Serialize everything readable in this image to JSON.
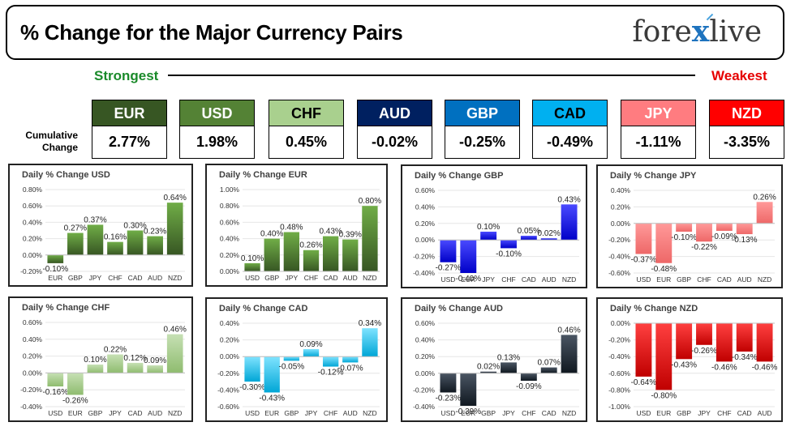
{
  "header": {
    "title": "% Change for the Major Currency Pairs",
    "logo_left": "fore",
    "logo_x": "x",
    "logo_right": "live"
  },
  "ranking": {
    "strongest_label": "Strongest",
    "weakest_label": "Weakest",
    "cumulative_label_1": "Cumulative",
    "cumulative_label_2": "Change"
  },
  "currencies": [
    {
      "code": "EUR",
      "value": "2.77%",
      "bg": "#375623",
      "fg": "#ffffff"
    },
    {
      "code": "USD",
      "value": "1.98%",
      "bg": "#548235",
      "fg": "#ffffff"
    },
    {
      "code": "CHF",
      "value": "0.45%",
      "bg": "#a9d08e",
      "fg": "#000000"
    },
    {
      "code": "AUD",
      "value": "-0.02%",
      "bg": "#002060",
      "fg": "#ffffff"
    },
    {
      "code": "GBP",
      "value": "-0.25%",
      "bg": "#0070c0",
      "fg": "#ffffff"
    },
    {
      "code": "CAD",
      "value": "-0.49%",
      "bg": "#00b0f0",
      "fg": "#000000"
    },
    {
      "code": "JPY",
      "value": "-1.11%",
      "bg": "#ff7c80",
      "fg": "#ffffff"
    },
    {
      "code": "NZD",
      "value": "-3.35%",
      "bg": "#ff0000",
      "fg": "#ffffff"
    }
  ],
  "chart_data": [
    {
      "type": "bar",
      "title": "Daily % Change USD",
      "categories": [
        "EUR",
        "GBP",
        "JPY",
        "CHF",
        "CAD",
        "AUD",
        "NZD"
      ],
      "values": [
        -0.1,
        0.27,
        0.37,
        0.16,
        0.3,
        0.23,
        0.64
      ],
      "labels": [
        "-0.10%",
        "0.27%",
        "0.37%",
        "0.16%",
        "0.30%",
        "0.23%",
        "0.64%"
      ],
      "yticks": [
        "0.80%",
        "0.60%",
        "0.40%",
        "0.20%",
        "0.00%",
        "-0.20%"
      ],
      "ylim": [
        -0.2,
        0.8
      ],
      "color_top": "#70ad47",
      "color_bottom": "#375623"
    },
    {
      "type": "bar",
      "title": "Daily % Change EUR",
      "categories": [
        "USD",
        "GBP",
        "JPY",
        "CHF",
        "CAD",
        "AUD",
        "NZD"
      ],
      "values": [
        0.1,
        0.4,
        0.48,
        0.26,
        0.43,
        0.39,
        0.8
      ],
      "labels": [
        "0.10%",
        "0.40%",
        "0.48%",
        "0.26%",
        "0.43%",
        "0.39%",
        "0.80%"
      ],
      "yticks": [
        "1.00%",
        "0.80%",
        "0.60%",
        "0.40%",
        "0.20%",
        "0.00%"
      ],
      "ylim": [
        0.0,
        1.0
      ],
      "color_top": "#70ad47",
      "color_bottom": "#375623"
    },
    {
      "type": "bar",
      "title": "Daily % Change GBP",
      "categories": [
        "USD",
        "EUR",
        "JPY",
        "CHF",
        "CAD",
        "AUD",
        "NZD"
      ],
      "values": [
        -0.27,
        -0.4,
        0.1,
        -0.1,
        0.05,
        0.02,
        0.43
      ],
      "labels": [
        "-0.27%",
        "-0.40%",
        "0.10%",
        "-0.10%",
        "0.05%",
        "0.02%",
        "0.43%"
      ],
      "yticks": [
        "0.60%",
        "0.40%",
        "0.20%",
        "0.00%",
        "-0.20%",
        "-0.40%"
      ],
      "ylim": [
        -0.4,
        0.6
      ],
      "color_top": "#4a4aff",
      "color_bottom": "#0000c8"
    },
    {
      "type": "bar",
      "title": "Daily % Change JPY",
      "categories": [
        "USD",
        "EUR",
        "GBP",
        "CHF",
        "CAD",
        "AUD",
        "NZD"
      ],
      "values": [
        -0.37,
        -0.48,
        -0.1,
        -0.22,
        -0.09,
        -0.13,
        0.26
      ],
      "labels": [
        "-0.37%",
        "-0.48%",
        "-0.10%",
        "-0.22%",
        "-0.09%",
        "-0.13%",
        "0.26%"
      ],
      "yticks": [
        "0.40%",
        "0.20%",
        "0.00%",
        "-0.20%",
        "-0.40%",
        "-0.60%"
      ],
      "ylim": [
        -0.6,
        0.4
      ],
      "color_top": "#ff9999",
      "color_bottom": "#ee6868"
    },
    {
      "type": "bar",
      "title": "Daily % Change CHF",
      "categories": [
        "USD",
        "EUR",
        "GBP",
        "JPY",
        "CAD",
        "AUD",
        "NZD"
      ],
      "values": [
        -0.16,
        -0.26,
        0.1,
        0.22,
        0.12,
        0.09,
        0.46
      ],
      "labels": [
        "-0.16%",
        "-0.26%",
        "0.10%",
        "0.22%",
        "0.12%",
        "0.09%",
        "0.46%"
      ],
      "yticks": [
        "0.60%",
        "0.40%",
        "0.20%",
        "0.00%",
        "-0.20%",
        "-0.40%"
      ],
      "ylim": [
        -0.4,
        0.6
      ],
      "color_top": "#c6e0b4",
      "color_bottom": "#8fbc6f"
    },
    {
      "type": "bar",
      "title": "Daily % Change CAD",
      "categories": [
        "USD",
        "EUR",
        "GBP",
        "JPY",
        "CHF",
        "AUD",
        "NZD"
      ],
      "values": [
        -0.3,
        -0.43,
        -0.05,
        0.09,
        -0.12,
        -0.07,
        0.34
      ],
      "labels": [
        "-0.30%",
        "-0.43%",
        "-0.05%",
        "0.09%",
        "-0.12%",
        "-0.07%",
        "0.34%"
      ],
      "yticks": [
        "0.40%",
        "0.20%",
        "0.00%",
        "-0.20%",
        "-0.40%",
        "-0.60%"
      ],
      "ylim": [
        -0.6,
        0.4
      ],
      "color_top": "#7fe3ff",
      "color_bottom": "#00a6d6"
    },
    {
      "type": "bar",
      "title": "Daily % Change AUD",
      "categories": [
        "USD",
        "EUR",
        "GBP",
        "JPY",
        "CHF",
        "CAD",
        "NZD"
      ],
      "values": [
        -0.23,
        -0.39,
        0.02,
        0.13,
        -0.09,
        0.07,
        0.46
      ],
      "labels": [
        "-0.23%",
        "-0.39%",
        "0.02%",
        "0.13%",
        "-0.09%",
        "0.07%",
        "0.46%"
      ],
      "yticks": [
        "0.60%",
        "0.40%",
        "0.20%",
        "0.00%",
        "-0.20%",
        "-0.40%"
      ],
      "ylim": [
        -0.4,
        0.6
      ],
      "color_top": "#4a5563",
      "color_bottom": "#101820"
    },
    {
      "type": "bar",
      "title": "Daily % Change NZD",
      "categories": [
        "USD",
        "EUR",
        "GBP",
        "JPY",
        "CHF",
        "CAD",
        "AUD"
      ],
      "values": [
        -0.64,
        -0.8,
        -0.43,
        -0.26,
        -0.46,
        -0.34,
        -0.46
      ],
      "labels": [
        "-0.64%",
        "-0.80%",
        "-0.43%",
        "-0.26%",
        "-0.46%",
        "-0.34%",
        "-0.46%"
      ],
      "yticks": [
        "0.00%",
        "-0.20%",
        "-0.40%",
        "-0.60%",
        "-0.80%",
        "-1.00%"
      ],
      "ylim": [
        -1.0,
        0.0
      ],
      "color_top": "#ff4040",
      "color_bottom": "#c00000"
    }
  ]
}
